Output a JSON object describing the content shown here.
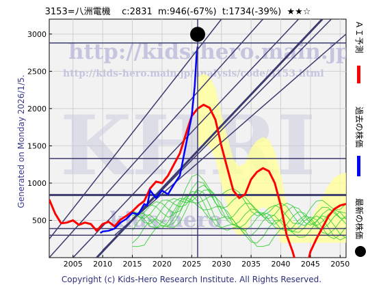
{
  "header": {
    "title": "3153=八洲電機    c:2831  m:946(-67%)  t:1734(-39%)  ★★☆"
  },
  "side_text": "Generated on Monday 2026/1/5.",
  "footer": "Copyright (c) Kids-Hero Research Institute. All Rights Reserved.",
  "watermarks": {
    "url": "http://kids-hero.main.jp/",
    "analysis_url": "http://kids-hero.main.jp/analysis/code/3153.html",
    "big": "KHRI",
    "small": "kids-hero"
  },
  "legend": [
    {
      "label": "ＡＩ予測",
      "color": "#ff0000"
    },
    {
      "label": "過去の株価",
      "color": "#0000ff"
    },
    {
      "label": "最新の株価",
      "color": "#000000"
    }
  ],
  "colors": {
    "forecast_fill": "#ffff99",
    "band_green": "#33cc33",
    "band_green_fill": "#99ee66",
    "guide_line": "#3a3a6e"
  },
  "chart_data": {
    "type": "line",
    "xlim": [
      2001,
      2051
    ],
    "ylim": [
      0,
      3200
    ],
    "x_ticks": [
      2005,
      2010,
      2015,
      2020,
      2025,
      2030,
      2035,
      2040,
      2045,
      2050
    ],
    "y_ticks": [
      500,
      1000,
      1500,
      2000,
      2500,
      3000
    ],
    "grid": true,
    "latest_point": {
      "x": 2026.0,
      "y": 2831
    },
    "horizontal_levels": [
      2880,
      1330,
      840,
      390,
      300
    ],
    "vertical_marker": 2026.0,
    "ai_forecast": {
      "name": "ＡＩ予測",
      "points": [
        [
          2001,
          780
        ],
        [
          2002,
          590
        ],
        [
          2003,
          460
        ],
        [
          2004,
          470
        ],
        [
          2005,
          500
        ],
        [
          2006,
          440
        ],
        [
          2007,
          470
        ],
        [
          2008,
          450
        ],
        [
          2009,
          360
        ],
        [
          2010,
          450
        ],
        [
          2011,
          480
        ],
        [
          2012,
          420
        ],
        [
          2013,
          510
        ],
        [
          2014,
          560
        ],
        [
          2015,
          620
        ],
        [
          2016,
          700
        ],
        [
          2017,
          760
        ],
        [
          2018,
          930
        ],
        [
          2019,
          1020
        ],
        [
          2020,
          1000
        ],
        [
          2021,
          1100
        ],
        [
          2022,
          1250
        ],
        [
          2023,
          1400
        ],
        [
          2024,
          1650
        ],
        [
          2025,
          1900
        ],
        [
          2026,
          2000
        ],
        [
          2027,
          2050
        ],
        [
          2028,
          2010
        ],
        [
          2029,
          1850
        ],
        [
          2030,
          1500
        ],
        [
          2031,
          1200
        ],
        [
          2032,
          900
        ],
        [
          2033,
          800
        ],
        [
          2034,
          850
        ],
        [
          2035,
          1050
        ],
        [
          2036,
          1150
        ],
        [
          2037,
          1200
        ],
        [
          2038,
          1160
        ],
        [
          2039,
          1000
        ],
        [
          2040,
          700
        ],
        [
          2041,
          300
        ],
        [
          2042,
          80
        ],
        [
          2043,
          -200
        ],
        [
          2044,
          -250
        ],
        [
          2045,
          80
        ],
        [
          2046,
          250
        ],
        [
          2047,
          400
        ],
        [
          2048,
          550
        ],
        [
          2049,
          650
        ],
        [
          2050,
          700
        ],
        [
          2051,
          720
        ]
      ]
    },
    "past_price": {
      "name": "過去の株価",
      "points": [
        [
          2009.6,
          330
        ],
        [
          2010,
          350
        ],
        [
          2011,
          360
        ],
        [
          2012,
          390
        ],
        [
          2013,
          470
        ],
        [
          2014,
          520
        ],
        [
          2015,
          600
        ],
        [
          2016,
          580
        ],
        [
          2017,
          720
        ],
        [
          2017.5,
          700
        ],
        [
          2018,
          900
        ],
        [
          2019,
          800
        ],
        [
          2020,
          900
        ],
        [
          2021,
          850
        ],
        [
          2022,
          980
        ],
        [
          2023,
          1100
        ],
        [
          2024,
          1500
        ],
        [
          2024.5,
          1700
        ],
        [
          2025,
          1900
        ],
        [
          2025.5,
          2300
        ],
        [
          2025.8,
          2700
        ],
        [
          2026.0,
          2831
        ]
      ]
    }
  }
}
